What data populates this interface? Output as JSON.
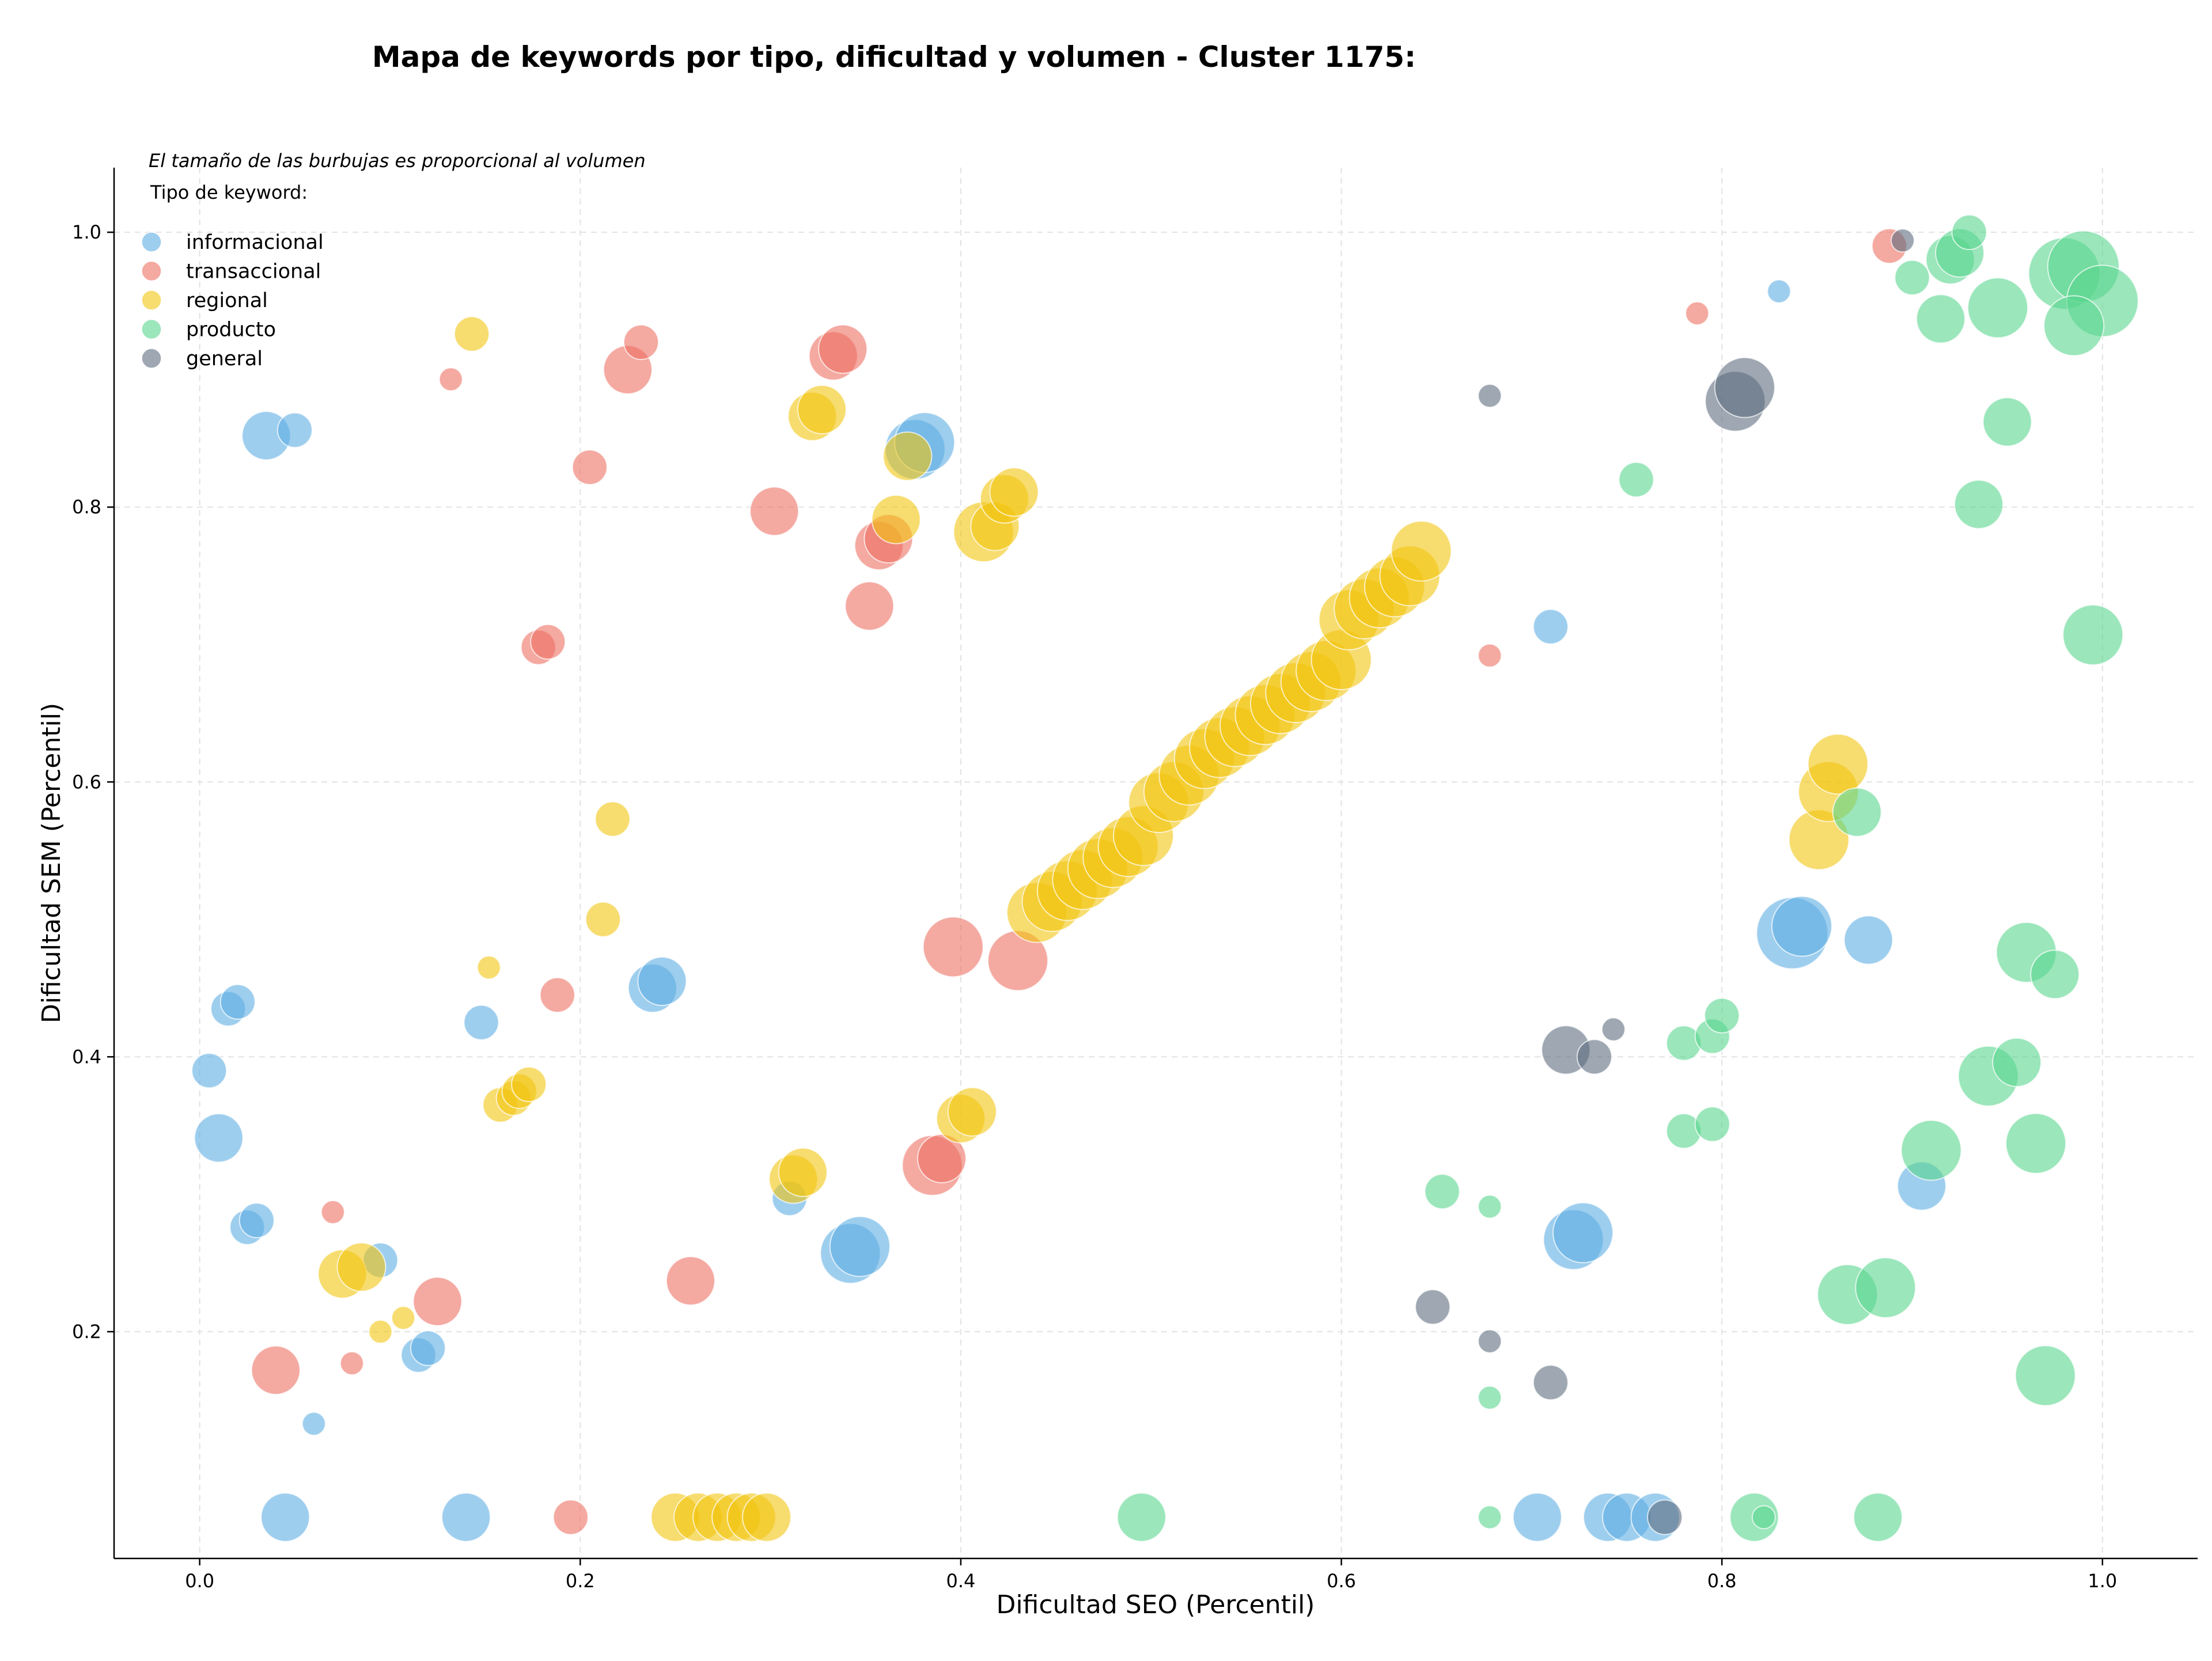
{
  "chart_data": {
    "type": "scatter",
    "title": "Mapa de keywords por tipo, dificultad y volumen - Cluster 1175:",
    "xlabel": "Dificultad SEO (Percentil)",
    "ylabel": "Dificultad SEM (Percentil)",
    "note": "El tamaño de las burbujas es proporcional al volumen",
    "xlim": [
      -0.045,
      1.05
    ],
    "ylim": [
      0.035,
      1.047
    ],
    "x_ticks": [
      0.0,
      0.2,
      0.4,
      0.6,
      0.8,
      1.0
    ],
    "y_ticks": [
      0.2,
      0.4,
      0.6,
      0.8,
      1.0
    ],
    "x_tick_labels": [
      "0.0",
      "0.2",
      "0.4",
      "0.6",
      "0.8",
      "1.0"
    ],
    "y_tick_labels": [
      "0.2",
      "0.4",
      "0.6",
      "0.8",
      "1.0"
    ],
    "grid": true,
    "legend": {
      "title": "Tipo de keyword:",
      "position": "top-left"
    },
    "series": [
      {
        "name": "informacional",
        "color": "#5DADE2",
        "points": [
          [
            0.035,
            0.852,
            3
          ],
          [
            0.05,
            0.856,
            2
          ],
          [
            0.005,
            0.39,
            2
          ],
          [
            0.01,
            0.341,
            3
          ],
          [
            0.015,
            0.435,
            2
          ],
          [
            0.02,
            0.44,
            2
          ],
          [
            0.025,
            0.276,
            2
          ],
          [
            0.03,
            0.281,
            2
          ],
          [
            0.06,
            0.133,
            1
          ],
          [
            0.045,
            0.065,
            3
          ],
          [
            0.095,
            0.252,
            2
          ],
          [
            0.115,
            0.183,
            2
          ],
          [
            0.12,
            0.188,
            2
          ],
          [
            0.14,
            0.065,
            3
          ],
          [
            0.148,
            0.425,
            2
          ],
          [
            0.238,
            0.45,
            3
          ],
          [
            0.243,
            0.455,
            3
          ],
          [
            0.31,
            0.297,
            2
          ],
          [
            0.342,
            0.257,
            4
          ],
          [
            0.347,
            0.262,
            4
          ],
          [
            0.376,
            0.842,
            4
          ],
          [
            0.381,
            0.847,
            4
          ],
          [
            0.71,
            0.713,
            2
          ],
          [
            0.703,
            0.065,
            3
          ],
          [
            0.722,
            0.267,
            4
          ],
          [
            0.727,
            0.272,
            4
          ],
          [
            0.74,
            0.065,
            3
          ],
          [
            0.75,
            0.065,
            3
          ],
          [
            0.765,
            0.065,
            3
          ],
          [
            0.83,
            0.957,
            1
          ],
          [
            0.837,
            0.49,
            5
          ],
          [
            0.842,
            0.495,
            4
          ],
          [
            0.877,
            0.485,
            3
          ],
          [
            0.905,
            0.306,
            3
          ]
        ]
      },
      {
        "name": "transaccional",
        "color": "#EC7063",
        "points": [
          [
            0.132,
            0.893,
            1
          ],
          [
            0.07,
            0.287,
            1
          ],
          [
            0.08,
            0.177,
            1
          ],
          [
            0.04,
            0.172,
            3
          ],
          [
            0.125,
            0.222,
            3
          ],
          [
            0.178,
            0.698,
            2
          ],
          [
            0.183,
            0.702,
            2
          ],
          [
            0.188,
            0.445,
            2
          ],
          [
            0.205,
            0.829,
            2
          ],
          [
            0.195,
            0.065,
            2
          ],
          [
            0.225,
            0.9,
            3
          ],
          [
            0.232,
            0.92,
            2
          ],
          [
            0.258,
            0.237,
            3
          ],
          [
            0.302,
            0.797,
            3
          ],
          [
            0.333,
            0.91,
            3
          ],
          [
            0.338,
            0.915,
            3
          ],
          [
            0.352,
            0.728,
            3
          ],
          [
            0.357,
            0.772,
            3
          ],
          [
            0.362,
            0.777,
            3
          ],
          [
            0.385,
            0.321,
            4
          ],
          [
            0.39,
            0.326,
            3
          ],
          [
            0.396,
            0.48,
            4
          ],
          [
            0.43,
            0.47,
            4
          ],
          [
            0.678,
            0.692,
            1
          ],
          [
            0.787,
            0.941,
            1
          ],
          [
            0.888,
            0.99,
            2
          ]
        ]
      },
      {
        "name": "regional",
        "color": "#F1C40F",
        "points": [
          [
            0.143,
            0.926,
            2
          ],
          [
            0.152,
            0.465,
            1
          ],
          [
            0.158,
            0.365,
            2
          ],
          [
            0.165,
            0.37,
            2
          ],
          [
            0.168,
            0.375,
            2
          ],
          [
            0.173,
            0.38,
            2
          ],
          [
            0.075,
            0.242,
            3
          ],
          [
            0.085,
            0.247,
            3
          ],
          [
            0.095,
            0.2,
            1
          ],
          [
            0.107,
            0.21,
            1
          ],
          [
            0.212,
            0.5,
            2
          ],
          [
            0.217,
            0.573,
            2
          ],
          [
            0.25,
            0.065,
            3
          ],
          [
            0.262,
            0.065,
            3
          ],
          [
            0.272,
            0.065,
            3
          ],
          [
            0.282,
            0.065,
            3
          ],
          [
            0.29,
            0.065,
            3
          ],
          [
            0.298,
            0.065,
            3
          ],
          [
            0.312,
            0.311,
            3
          ],
          [
            0.317,
            0.316,
            3
          ],
          [
            0.322,
            0.866,
            3
          ],
          [
            0.327,
            0.871,
            3
          ],
          [
            0.366,
            0.791,
            3
          ],
          [
            0.372,
            0.837,
            3
          ],
          [
            0.4,
            0.355,
            3
          ],
          [
            0.406,
            0.36,
            3
          ],
          [
            0.412,
            0.782,
            4
          ],
          [
            0.418,
            0.786,
            3
          ],
          [
            0.423,
            0.806,
            3
          ],
          [
            0.428,
            0.811,
            3
          ],
          [
            0.44,
            0.505,
            4
          ],
          [
            0.448,
            0.513,
            4
          ],
          [
            0.456,
            0.521,
            4
          ],
          [
            0.464,
            0.529,
            4
          ],
          [
            0.472,
            0.537,
            4
          ],
          [
            0.48,
            0.545,
            4
          ],
          [
            0.488,
            0.553,
            4
          ],
          [
            0.496,
            0.561,
            4
          ],
          [
            0.504,
            0.585,
            4
          ],
          [
            0.512,
            0.593,
            4
          ],
          [
            0.52,
            0.605,
            4
          ],
          [
            0.528,
            0.617,
            4
          ],
          [
            0.536,
            0.625,
            4
          ],
          [
            0.544,
            0.633,
            4
          ],
          [
            0.552,
            0.641,
            4
          ],
          [
            0.56,
            0.649,
            4
          ],
          [
            0.568,
            0.657,
            4
          ],
          [
            0.576,
            0.665,
            4
          ],
          [
            0.584,
            0.673,
            4
          ],
          [
            0.592,
            0.681,
            4
          ],
          [
            0.6,
            0.689,
            4
          ],
          [
            0.604,
            0.718,
            4
          ],
          [
            0.612,
            0.726,
            4
          ],
          [
            0.62,
            0.734,
            4
          ],
          [
            0.628,
            0.742,
            4
          ],
          [
            0.636,
            0.75,
            4
          ],
          [
            0.642,
            0.768,
            4
          ],
          [
            0.851,
            0.558,
            4
          ],
          [
            0.856,
            0.593,
            4
          ],
          [
            0.861,
            0.613,
            4
          ]
        ]
      },
      {
        "name": "producto",
        "color": "#58D68D",
        "points": [
          [
            0.495,
            0.065,
            3
          ],
          [
            0.653,
            0.302,
            2
          ],
          [
            0.678,
            0.291,
            1
          ],
          [
            0.678,
            0.065,
            1
          ],
          [
            0.678,
            0.152,
            1
          ],
          [
            0.755,
            0.82,
            2
          ],
          [
            0.78,
            0.41,
            2
          ],
          [
            0.795,
            0.415,
            2
          ],
          [
            0.8,
            0.43,
            2
          ],
          [
            0.78,
            0.346,
            2
          ],
          [
            0.795,
            0.351,
            2
          ],
          [
            0.817,
            0.065,
            3
          ],
          [
            0.822,
            0.065,
            1
          ],
          [
            0.866,
            0.227,
            4
          ],
          [
            0.871,
            0.578,
            3
          ],
          [
            0.882,
            0.065,
            3
          ],
          [
            0.886,
            0.232,
            4
          ],
          [
            0.9,
            0.967,
            2
          ],
          [
            0.915,
            0.937,
            3
          ],
          [
            0.92,
            0.98,
            3
          ],
          [
            0.925,
            0.985,
            3
          ],
          [
            0.93,
            1.0,
            2
          ],
          [
            0.935,
            0.802,
            3
          ],
          [
            0.94,
            0.386,
            4
          ],
          [
            0.945,
            0.945,
            4
          ],
          [
            0.95,
            0.862,
            3
          ],
          [
            0.955,
            0.396,
            3
          ],
          [
            0.91,
            0.332,
            4
          ],
          [
            0.96,
            0.476,
            4
          ],
          [
            0.965,
            0.337,
            4
          ],
          [
            0.97,
            0.168,
            4
          ],
          [
            0.975,
            0.46,
            3
          ],
          [
            0.98,
            0.97,
            5
          ],
          [
            0.985,
            0.932,
            4
          ],
          [
            0.99,
            0.975,
            5
          ],
          [
            0.995,
            0.707,
            4
          ],
          [
            1.0,
            0.95,
            5
          ]
        ]
      },
      {
        "name": "general",
        "color": "#5D6D7E",
        "points": [
          [
            0.678,
            0.881,
            1
          ],
          [
            0.648,
            0.218,
            2
          ],
          [
            0.678,
            0.193,
            1
          ],
          [
            0.71,
            0.163,
            2
          ],
          [
            0.718,
            0.405,
            3
          ],
          [
            0.733,
            0.4,
            2
          ],
          [
            0.743,
            0.42,
            1
          ],
          [
            0.77,
            0.065,
            2
          ],
          [
            0.807,
            0.877,
            4
          ],
          [
            0.812,
            0.887,
            4
          ],
          [
            0.895,
            0.994,
            1
          ]
        ]
      }
    ]
  }
}
